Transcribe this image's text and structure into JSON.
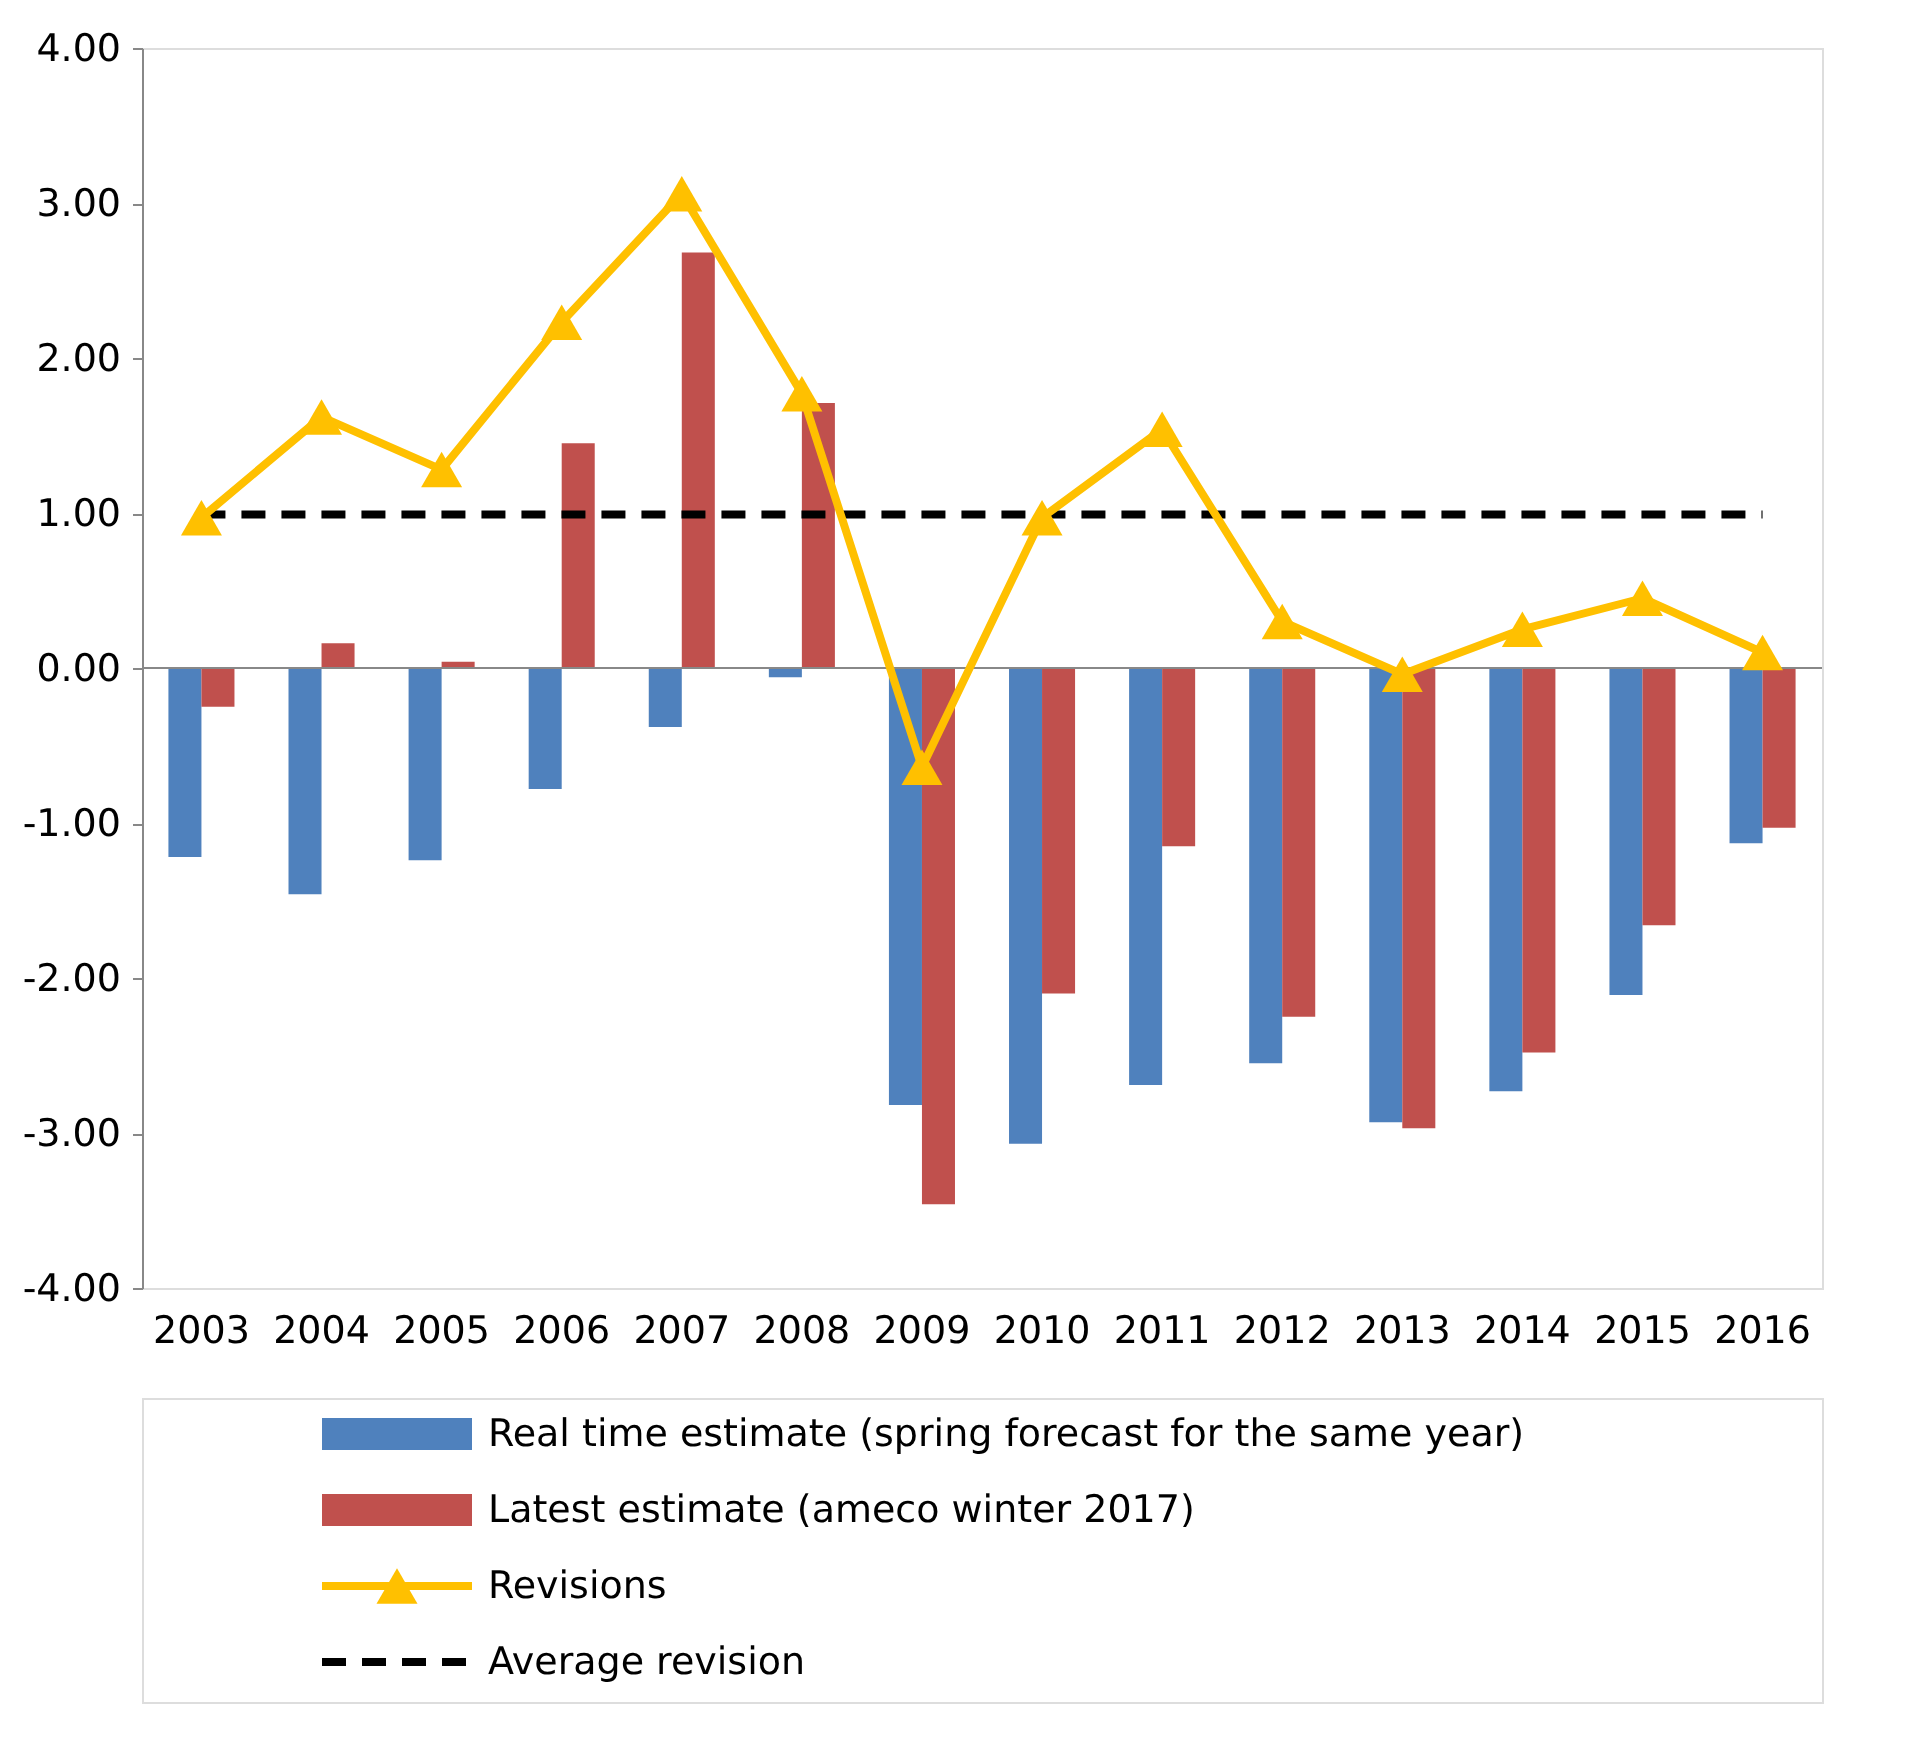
{
  "chart_data": {
    "type": "bar",
    "categories": [
      "2003",
      "2004",
      "2005",
      "2006",
      "2007",
      "2008",
      "2009",
      "2010",
      "2011",
      "2012",
      "2013",
      "2014",
      "2015",
      "2016"
    ],
    "series": [
      {
        "name": "Real time estimate (spring forecast for the same year)",
        "color": "#4f81bd",
        "values": [
          -1.22,
          -1.46,
          -1.24,
          -0.78,
          -0.38,
          -0.06,
          -2.82,
          -3.07,
          -2.69,
          -2.55,
          -2.93,
          -2.73,
          -2.11,
          -1.13
        ]
      },
      {
        "name": "Latest estimate (ameco winter 2017)",
        "color": "#c0504d",
        "values": [
          -0.25,
          0.16,
          0.04,
          1.45,
          2.68,
          1.71,
          -3.46,
          -2.1,
          -1.15,
          -2.25,
          -2.97,
          -2.48,
          -1.66,
          -1.03
        ]
      },
      {
        "name": "Revisions",
        "type": "line",
        "color": "#ffc000",
        "marker": "triangle",
        "values": [
          0.97,
          1.62,
          1.28,
          2.23,
          3.06,
          1.77,
          -0.64,
          0.97,
          1.54,
          0.3,
          -0.04,
          0.25,
          0.45,
          0.1
        ]
      }
    ],
    "ref_lines": [
      {
        "axis": "y",
        "value": 0.99,
        "label": "Average revision",
        "color": "#000000",
        "line_style": "dashed"
      }
    ],
    "ylim": [
      -4,
      4
    ],
    "yticks": [
      {
        "value": -4,
        "label": "-4.00"
      },
      {
        "value": -3,
        "label": "-3.00"
      },
      {
        "value": -2,
        "label": "-2.00"
      },
      {
        "value": -1,
        "label": "-1.00"
      },
      {
        "value": 0,
        "label": "0.00"
      },
      {
        "value": 1,
        "label": "1.00"
      },
      {
        "value": 2,
        "label": "2.00"
      },
      {
        "value": 3,
        "label": "3.00"
      },
      {
        "value": 4,
        "label": "4.00"
      }
    ],
    "grid": false,
    "legend": "bottom"
  }
}
